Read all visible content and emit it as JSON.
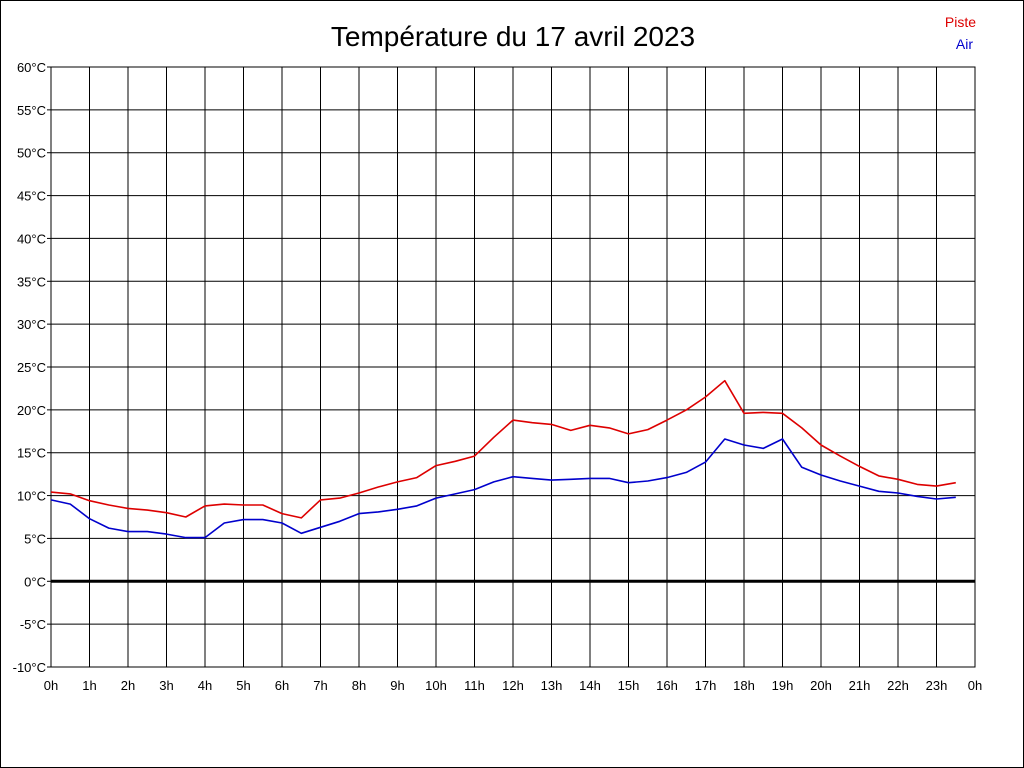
{
  "chart_data": {
    "type": "line",
    "title": "Température du 17 avril 2023",
    "xlabel": "",
    "ylabel": "",
    "xlim": [
      0,
      24
    ],
    "ylim": [
      -10,
      60
    ],
    "grid": true,
    "legend_position": "top-right",
    "x_tick_labels": [
      "0h",
      "1h",
      "2h",
      "3h",
      "4h",
      "5h",
      "6h",
      "7h",
      "8h",
      "9h",
      "10h",
      "11h",
      "12h",
      "13h",
      "14h",
      "15h",
      "16h",
      "17h",
      "18h",
      "19h",
      "20h",
      "21h",
      "22h",
      "23h",
      "0h"
    ],
    "y_tick_labels": [
      "60°C",
      "55°C",
      "50°C",
      "45°C",
      "40°C",
      "35°C",
      "30°C",
      "25°C",
      "20°C",
      "15°C",
      "10°C",
      "5°C",
      "0°C",
      "-5°C",
      "-10°C"
    ],
    "y_tick_values": [
      60,
      55,
      50,
      45,
      40,
      35,
      30,
      25,
      20,
      15,
      10,
      5,
      0,
      -5,
      -10
    ],
    "zero_line": 0,
    "x": [
      0,
      0.5,
      1,
      1.5,
      2,
      2.5,
      3,
      3.5,
      4,
      4.5,
      5,
      5.5,
      6,
      6.5,
      7,
      7.5,
      8,
      8.5,
      9,
      9.5,
      10,
      10.5,
      11,
      11.5,
      12,
      12.5,
      13,
      13.5,
      14,
      14.5,
      15,
      15.5,
      16,
      16.5,
      17,
      17.5,
      18,
      18.5,
      19,
      19.5,
      20,
      20.5,
      21,
      21.5,
      22,
      22.5,
      23,
      23.5
    ],
    "series": [
      {
        "name": "Piste",
        "color": "#dd0000",
        "values": [
          10.4,
          10.2,
          9.4,
          8.9,
          8.5,
          8.3,
          8.0,
          7.5,
          8.8,
          9.0,
          8.9,
          8.9,
          7.9,
          7.4,
          9.5,
          9.7,
          10.3,
          11.0,
          11.6,
          12.1,
          13.5,
          14.0,
          14.6,
          16.8,
          18.8,
          18.5,
          18.3,
          17.6,
          18.2,
          17.9,
          17.2,
          17.7,
          18.8,
          20.0,
          21.5,
          23.4,
          19.6,
          19.7,
          19.6,
          17.9,
          15.9,
          14.6,
          13.4,
          12.3,
          11.9,
          11.3,
          11.1,
          11.5
        ]
      },
      {
        "name": "Air",
        "color": "#0000cc",
        "values": [
          9.5,
          9.0,
          7.3,
          6.2,
          5.8,
          5.8,
          5.5,
          5.1,
          5.1,
          6.8,
          7.2,
          7.2,
          6.8,
          5.6,
          6.3,
          7.0,
          7.9,
          8.1,
          8.4,
          8.8,
          9.7,
          10.2,
          10.7,
          11.6,
          12.2,
          12.0,
          11.8,
          11.9,
          12.0,
          12.0,
          11.5,
          11.7,
          12.1,
          12.7,
          13.9,
          16.6,
          15.9,
          15.5,
          16.6,
          13.3,
          12.4,
          11.7,
          11.1,
          10.5,
          10.3,
          9.9,
          9.6,
          9.8
        ]
      }
    ]
  }
}
